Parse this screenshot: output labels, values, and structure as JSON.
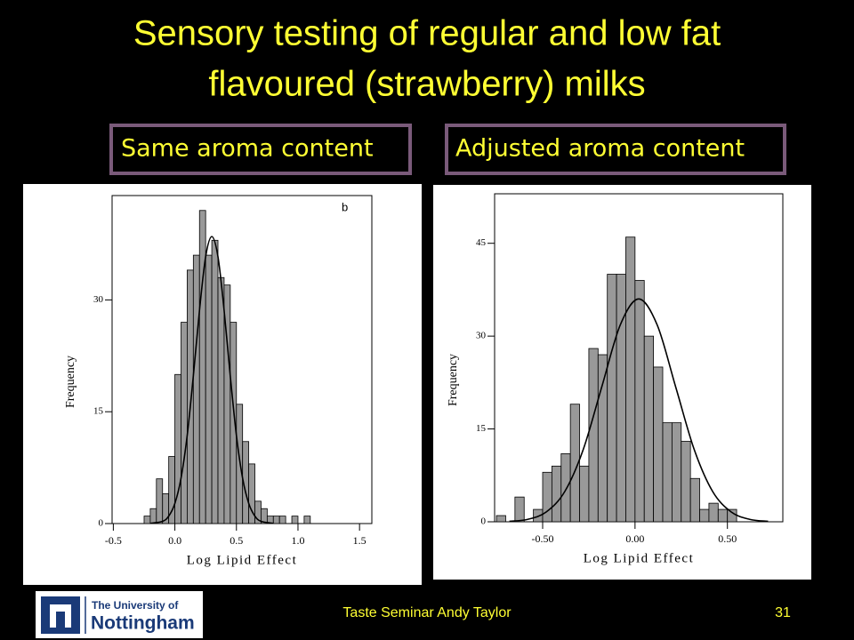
{
  "slide_title": [
    "Sensory testing of regular and low fat",
    "flavoured (strawberry) milks"
  ],
  "chart_data": [
    {
      "type": "histogram",
      "title": "Same aroma content",
      "annotation": "b",
      "xlabel": "Log Lipid Effect",
      "ylabel": "Frequency",
      "color": "#999999",
      "bins": [
        -0.25,
        -0.2,
        -0.15,
        -0.1,
        -0.05,
        0.0,
        0.05,
        0.1,
        0.15,
        0.2,
        0.25,
        0.3,
        0.35,
        0.4,
        0.45,
        0.5,
        0.55,
        0.6,
        0.65,
        0.7,
        0.75,
        0.8,
        0.85,
        0.9,
        0.95,
        1.0,
        1.05,
        1.1
      ],
      "values": [
        1,
        2,
        6,
        4,
        9,
        20,
        27,
        34,
        36,
        42,
        36,
        38,
        33,
        32,
        27,
        16,
        11,
        8,
        3,
        2,
        1,
        1,
        1,
        0,
        1,
        0,
        1
      ],
      "fit": {
        "x": [
          -0.2,
          -0.1,
          -0.05,
          0.0,
          0.05,
          0.1,
          0.15,
          0.2,
          0.25,
          0.3,
          0.35,
          0.4,
          0.45,
          0.5,
          0.55,
          0.6,
          0.65,
          0.7,
          0.8
        ],
        "values": [
          0.03,
          0.3,
          1.0,
          2.7,
          6.1,
          11.8,
          19.8,
          28.6,
          35.8,
          38.5,
          35.8,
          28.6,
          19.8,
          11.8,
          6.1,
          2.7,
          1.0,
          0.3,
          0.03
        ]
      },
      "xlim": [
        -0.51,
        1.6
      ],
      "ylim": [
        0,
        44
      ],
      "xticks": [
        -0.5,
        {
          "value": 0,
          "label": "0.0"
        },
        0.5,
        {
          "value": 1,
          "label": "1.0"
        },
        1.5
      ],
      "yticks": [
        0,
        15,
        30
      ]
    },
    {
      "type": "histogram",
      "title": "Adjusted aroma content",
      "xlabel": "Log Lipid Effect",
      "ylabel": "Frequency",
      "color": "#999999",
      "bins": [
        -0.75,
        -0.7,
        -0.65,
        -0.6,
        -0.55,
        -0.5,
        -0.45,
        -0.4,
        -0.35,
        -0.3,
        -0.25,
        -0.2,
        -0.15,
        -0.1,
        -0.05,
        0.0,
        0.05,
        0.1,
        0.15,
        0.2,
        0.25,
        0.3,
        0.35,
        0.4,
        0.45,
        0.5,
        0.55
      ],
      "values": [
        1,
        0,
        4,
        0,
        2,
        8,
        9,
        11,
        19,
        9,
        28,
        27,
        40,
        40,
        46,
        39,
        30,
        25,
        16,
        16,
        13,
        7,
        2,
        3,
        2,
        2
      ],
      "fit": {
        "x": [
          -0.68,
          -0.58,
          -0.48,
          -0.38,
          -0.28,
          -0.18,
          -0.08,
          0.02,
          0.12,
          0.22,
          0.32,
          0.42,
          0.52,
          0.62,
          0.72
        ],
        "values": [
          0.08,
          0.4,
          1.6,
          4.9,
          11.7,
          21.8,
          31.8,
          36,
          31.8,
          21.8,
          11.7,
          4.9,
          1.6,
          0.4,
          0.08
        ]
      },
      "xlim": [
        -0.76,
        0.8
      ],
      "ylim": [
        0,
        53
      ],
      "xticks": [
        {
          "value": -0.5,
          "label": "-0.50"
        },
        {
          "value": 0,
          "label": "0.00"
        },
        {
          "value": 0.5,
          "label": "0.50"
        }
      ],
      "yticks": [
        0,
        15,
        30,
        45
      ]
    }
  ],
  "footer": {
    "text": "Taste Seminar Andy Taylor",
    "page": "31",
    "logo": [
      "The University of",
      "Nottingham"
    ]
  }
}
